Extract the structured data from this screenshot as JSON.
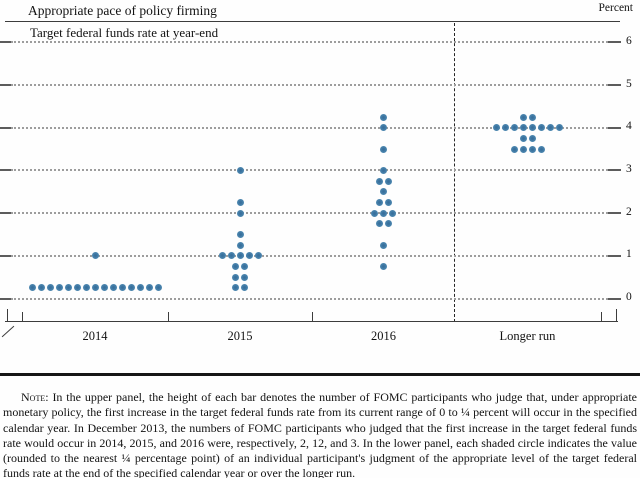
{
  "header": {
    "title": "Appropriate pace of policy firming",
    "subtitle": "Target federal funds rate at year-end",
    "unit_label": "Percent"
  },
  "chart_data": {
    "type": "scatter",
    "subtype": "fomc-dot-plot",
    "title": "Appropriate pace of policy firming",
    "panel_label": "Target federal funds rate at year-end",
    "ylabel": "Percent",
    "ylim": [
      0,
      6
    ],
    "yticks": [
      "0",
      "1",
      "2",
      "3",
      "4",
      "5",
      "6"
    ],
    "grid": "dotted-horizontal",
    "categories": [
      "2014",
      "2015",
      "2016",
      "Longer run"
    ],
    "separator_before_category": "Longer run",
    "dot_color": "#4f89b1",
    "series": [
      {
        "category": "2014",
        "dots": [
          {
            "rate": 1.0,
            "count": 1
          },
          {
            "rate": 0.25,
            "count": 15
          }
        ]
      },
      {
        "category": "2015",
        "dots": [
          {
            "rate": 3.0,
            "count": 1
          },
          {
            "rate": 2.25,
            "count": 1
          },
          {
            "rate": 2.0,
            "count": 1
          },
          {
            "rate": 1.5,
            "count": 1
          },
          {
            "rate": 1.25,
            "count": 1
          },
          {
            "rate": 1.0,
            "count": 5
          },
          {
            "rate": 0.75,
            "count": 2
          },
          {
            "rate": 0.5,
            "count": 2
          },
          {
            "rate": 0.25,
            "count": 2
          }
        ]
      },
      {
        "category": "2016",
        "dots": [
          {
            "rate": 4.25,
            "count": 1
          },
          {
            "rate": 4.0,
            "count": 1
          },
          {
            "rate": 3.5,
            "count": 1
          },
          {
            "rate": 3.0,
            "count": 1
          },
          {
            "rate": 2.75,
            "count": 2
          },
          {
            "rate": 2.5,
            "count": 1
          },
          {
            "rate": 2.25,
            "count": 2
          },
          {
            "rate": 2.0,
            "count": 3
          },
          {
            "rate": 1.75,
            "count": 2
          },
          {
            "rate": 1.25,
            "count": 1
          },
          {
            "rate": 0.75,
            "count": 1
          }
        ]
      },
      {
        "category": "Longer run",
        "dots": [
          {
            "rate": 4.25,
            "count": 2
          },
          {
            "rate": 4.0,
            "count": 8
          },
          {
            "rate": 3.75,
            "count": 2
          },
          {
            "rate": 3.5,
            "count": 4
          }
        ]
      }
    ]
  },
  "note": {
    "label": "Note:",
    "body": "In the upper panel, the height of each bar denotes the number of FOMC participants who judge that, under appropriate monetary policy, the first increase in the target federal funds rate from its current range of 0 to ¼ percent will occur in the specified calendar year. In December 2013, the numbers of FOMC participants who judged that the first increase in the target federal funds rate would occur in 2014, 2015, and 2016 were, respectively, 2, 12, and 3. In the lower panel, each shaded circle indicates the value (rounded to the nearest ¼ percentage point) of an individual participant's judgment of the appropriate level of the target federal funds rate at the end of the specified calendar year or over the longer run."
  }
}
